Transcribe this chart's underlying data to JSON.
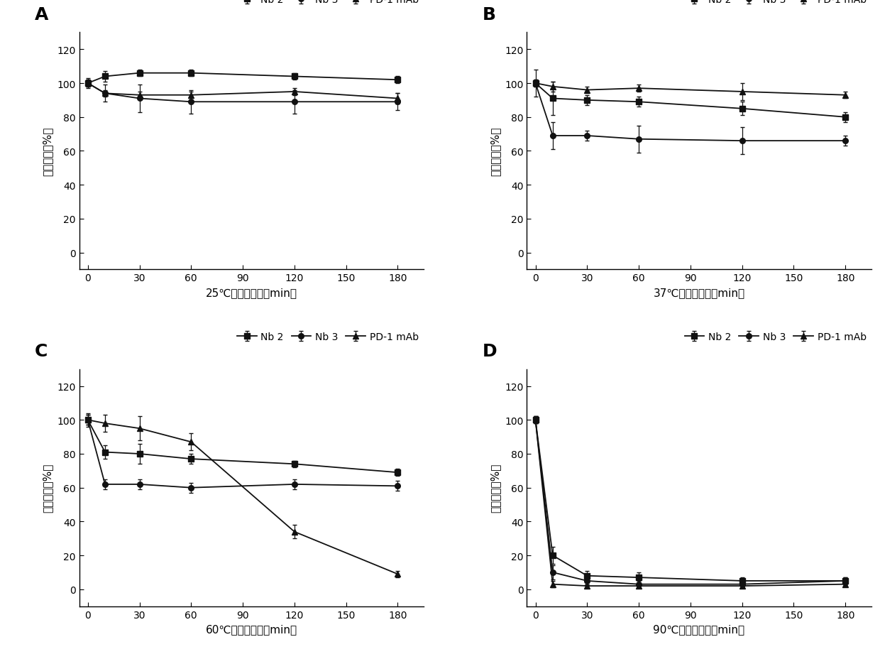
{
  "panels": [
    {
      "label": "A",
      "xlabel": "25℃下放置时间（min）",
      "x": [
        0,
        10,
        30,
        60,
        120,
        180
      ],
      "nb2": {
        "y": [
          100,
          104,
          106,
          106,
          104,
          102
        ],
        "yerr": [
          2,
          3,
          2,
          2,
          2,
          2
        ]
      },
      "nb3": {
        "y": [
          100,
          94,
          91,
          89,
          89,
          89
        ],
        "yerr": [
          2,
          5,
          8,
          7,
          7,
          5
        ]
      },
      "pd1": {
        "y": [
          100,
          94,
          93,
          93,
          95,
          91
        ],
        "yerr": [
          3,
          2,
          2,
          2,
          2,
          3
        ]
      },
      "ylim": [
        -10,
        130
      ],
      "yticks": [
        0,
        20,
        40,
        60,
        80,
        100,
        120
      ]
    },
    {
      "label": "B",
      "xlabel": "37℃下放置时间（min）",
      "x": [
        0,
        10,
        30,
        60,
        120,
        180
      ],
      "nb2": {
        "y": [
          100,
          91,
          90,
          89,
          85,
          80
        ],
        "yerr": [
          8,
          10,
          3,
          3,
          4,
          3
        ]
      },
      "nb3": {
        "y": [
          100,
          69,
          69,
          67,
          66,
          66
        ],
        "yerr": [
          2,
          8,
          3,
          8,
          8,
          3
        ]
      },
      "pd1": {
        "y": [
          100,
          98,
          96,
          97,
          95,
          93
        ],
        "yerr": [
          2,
          3,
          2,
          2,
          5,
          2
        ]
      },
      "ylim": [
        -10,
        130
      ],
      "yticks": [
        0,
        20,
        40,
        60,
        80,
        100,
        120
      ]
    },
    {
      "label": "C",
      "xlabel": "60℃下放置时间（min）",
      "x": [
        0,
        10,
        30,
        60,
        120,
        180
      ],
      "nb2": {
        "y": [
          100,
          81,
          80,
          77,
          74,
          69
        ],
        "yerr": [
          4,
          4,
          6,
          3,
          2,
          2
        ]
      },
      "nb3": {
        "y": [
          100,
          62,
          62,
          60,
          62,
          61
        ],
        "yerr": [
          3,
          3,
          3,
          3,
          3,
          3
        ]
      },
      "pd1": {
        "y": [
          100,
          98,
          95,
          87,
          34,
          9
        ],
        "yerr": [
          3,
          5,
          7,
          5,
          4,
          2
        ]
      },
      "ylim": [
        -10,
        130
      ],
      "yticks": [
        0,
        20,
        40,
        60,
        80,
        100,
        120
      ]
    },
    {
      "label": "D",
      "xlabel": "90℃下放置时间（min）",
      "x": [
        0,
        10,
        30,
        60,
        120,
        180
      ],
      "nb2": {
        "y": [
          100,
          20,
          8,
          7,
          5,
          5
        ],
        "yerr": [
          2,
          5,
          3,
          3,
          2,
          2
        ]
      },
      "nb3": {
        "y": [
          100,
          10,
          5,
          3,
          3,
          5
        ],
        "yerr": [
          2,
          4,
          2,
          2,
          2,
          2
        ]
      },
      "pd1": {
        "y": [
          100,
          3,
          2,
          2,
          2,
          3
        ],
        "yerr": [
          2,
          2,
          1,
          1,
          1,
          1
        ]
      },
      "ylim": [
        -10,
        130
      ],
      "yticks": [
        0,
        20,
        40,
        60,
        80,
        100,
        120
      ]
    }
  ],
  "ylabel": "相对活性（%）",
  "line_color": "#111111",
  "legend_labels": [
    "Nb 2",
    "Nb 3",
    "PD-1 mAb"
  ],
  "markers": [
    "s",
    "o",
    "^"
  ],
  "xticks": [
    0,
    30,
    60,
    90,
    120,
    150,
    180
  ],
  "fontsize_label": 11,
  "fontsize_tick": 10,
  "fontsize_panel": 18,
  "fontsize_legend": 10
}
